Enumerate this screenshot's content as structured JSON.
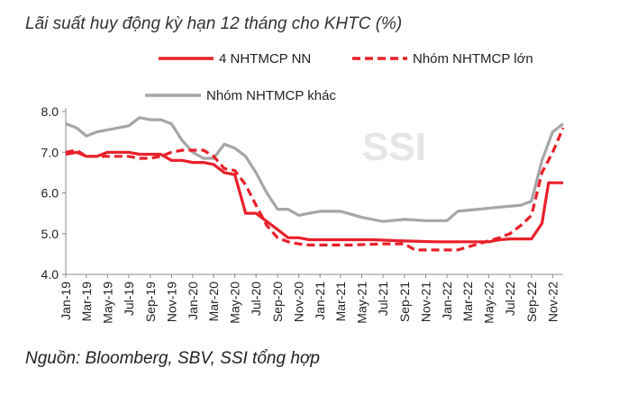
{
  "title": "Lãi suất huy động kỳ hạn 12 tháng cho KHTC (%)",
  "source": "Nguồn:  Bloomberg, SBV, SSI tổng hợp",
  "watermark": "SSI",
  "chart_data": {
    "type": "line",
    "ylim": [
      4.0,
      8.0
    ],
    "yticks": [
      "4.0",
      "5.0",
      "6.0",
      "7.0",
      "8.0"
    ],
    "xlim": [
      "2019-01",
      "2022-12"
    ],
    "xticks": [
      "Jan-19",
      "Mar-19",
      "May-19",
      "Jul-19",
      "Sep-19",
      "Nov-19",
      "Jan-20",
      "Mar-20",
      "May-20",
      "Jul-20",
      "Sep-20",
      "Nov-20",
      "Jan-21",
      "Mar-21",
      "May-21",
      "Jul-21",
      "Sep-21",
      "Nov-21",
      "Jan-22",
      "Mar-22",
      "May-22",
      "Jul-22",
      "Sep-22",
      "Nov-22"
    ],
    "legend_position": "top",
    "series": [
      {
        "name": "4 NHTMCP NN",
        "color": "#e8202a",
        "dash": "solid",
        "points": [
          [
            "2019-01-01",
            6.95
          ],
          [
            "2019-02-01",
            7.0
          ],
          [
            "2019-03-01",
            6.9
          ],
          [
            "2019-04-01",
            6.9
          ],
          [
            "2019-05-01",
            7.0
          ],
          [
            "2019-06-01",
            7.0
          ],
          [
            "2019-07-01",
            7.0
          ],
          [
            "2019-08-01",
            6.95
          ],
          [
            "2019-09-01",
            6.95
          ],
          [
            "2019-10-01",
            6.95
          ],
          [
            "2019-11-01",
            6.8
          ],
          [
            "2019-12-01",
            6.8
          ],
          [
            "2020-01-01",
            6.75
          ],
          [
            "2020-02-01",
            6.75
          ],
          [
            "2020-03-01",
            6.7
          ],
          [
            "2020-04-01",
            6.5
          ],
          [
            "2020-05-01",
            6.45
          ],
          [
            "2020-06-01",
            5.5
          ],
          [
            "2020-07-01",
            5.5
          ],
          [
            "2020-08-01",
            5.3
          ],
          [
            "2020-09-01",
            5.1
          ],
          [
            "2020-10-01",
            4.9
          ],
          [
            "2020-11-01",
            4.9
          ],
          [
            "2020-12-01",
            4.85
          ],
          [
            "2021-01-01",
            4.85
          ],
          [
            "2021-03-01",
            4.85
          ],
          [
            "2021-06-01",
            4.85
          ],
          [
            "2021-09-01",
            4.82
          ],
          [
            "2021-12-01",
            4.8
          ],
          [
            "2022-03-01",
            4.8
          ],
          [
            "2022-05-01",
            4.8
          ],
          [
            "2022-06-01",
            4.85
          ],
          [
            "2022-07-01",
            4.87
          ],
          [
            "2022-08-01",
            4.87
          ],
          [
            "2022-09-01",
            4.87
          ],
          [
            "2022-10-01",
            5.25
          ],
          [
            "2022-10-20",
            6.25
          ],
          [
            "2022-12-01",
            6.25
          ]
        ]
      },
      {
        "name": "Nhóm NHTMCP lớn",
        "color": "#e8202a",
        "dash": "dashed",
        "points": [
          [
            "2019-01-01",
            7.0
          ],
          [
            "2019-02-01",
            7.05
          ],
          [
            "2019-03-01",
            6.9
          ],
          [
            "2019-04-01",
            6.9
          ],
          [
            "2019-05-01",
            6.9
          ],
          [
            "2019-06-01",
            6.9
          ],
          [
            "2019-07-01",
            6.9
          ],
          [
            "2019-08-01",
            6.85
          ],
          [
            "2019-09-01",
            6.85
          ],
          [
            "2019-10-01",
            6.9
          ],
          [
            "2019-11-01",
            7.0
          ],
          [
            "2019-12-01",
            7.05
          ],
          [
            "2020-01-01",
            7.05
          ],
          [
            "2020-02-01",
            7.05
          ],
          [
            "2020-03-01",
            6.9
          ],
          [
            "2020-04-01",
            6.6
          ],
          [
            "2020-05-01",
            6.55
          ],
          [
            "2020-06-01",
            6.2
          ],
          [
            "2020-07-01",
            5.7
          ],
          [
            "2020-08-01",
            5.2
          ],
          [
            "2020-09-01",
            4.9
          ],
          [
            "2020-10-01",
            4.8
          ],
          [
            "2020-11-01",
            4.75
          ],
          [
            "2020-12-01",
            4.72
          ],
          [
            "2021-01-01",
            4.72
          ],
          [
            "2021-04-01",
            4.72
          ],
          [
            "2021-07-01",
            4.75
          ],
          [
            "2021-09-01",
            4.75
          ],
          [
            "2021-10-01",
            4.6
          ],
          [
            "2021-12-01",
            4.6
          ],
          [
            "2022-02-01",
            4.6
          ],
          [
            "2022-04-01",
            4.75
          ],
          [
            "2022-06-01",
            4.9
          ],
          [
            "2022-07-01",
            5.0
          ],
          [
            "2022-08-01",
            5.2
          ],
          [
            "2022-09-01",
            5.45
          ],
          [
            "2022-10-01",
            6.5
          ],
          [
            "2022-11-01",
            7.0
          ],
          [
            "2022-12-01",
            7.6
          ]
        ]
      },
      {
        "name": "Nhóm NHTMCP khác",
        "color": "#a6a6a6",
        "dash": "solid",
        "points": [
          [
            "2019-01-01",
            7.7
          ],
          [
            "2019-02-01",
            7.6
          ],
          [
            "2019-03-01",
            7.4
          ],
          [
            "2019-04-01",
            7.5
          ],
          [
            "2019-05-01",
            7.55
          ],
          [
            "2019-06-01",
            7.6
          ],
          [
            "2019-07-01",
            7.65
          ],
          [
            "2019-08-01",
            7.85
          ],
          [
            "2019-09-01",
            7.8
          ],
          [
            "2019-10-01",
            7.8
          ],
          [
            "2019-11-01",
            7.7
          ],
          [
            "2019-12-01",
            7.3
          ],
          [
            "2020-01-01",
            7.0
          ],
          [
            "2020-02-01",
            6.85
          ],
          [
            "2020-03-01",
            6.85
          ],
          [
            "2020-04-01",
            7.2
          ],
          [
            "2020-05-01",
            7.1
          ],
          [
            "2020-06-01",
            6.9
          ],
          [
            "2020-07-01",
            6.5
          ],
          [
            "2020-08-01",
            6.0
          ],
          [
            "2020-09-01",
            5.6
          ],
          [
            "2020-10-01",
            5.6
          ],
          [
            "2020-11-01",
            5.45
          ],
          [
            "2020-12-01",
            5.5
          ],
          [
            "2021-01-01",
            5.55
          ],
          [
            "2021-03-01",
            5.55
          ],
          [
            "2021-05-01",
            5.4
          ],
          [
            "2021-07-01",
            5.3
          ],
          [
            "2021-09-01",
            5.35
          ],
          [
            "2021-11-01",
            5.32
          ],
          [
            "2022-01-01",
            5.32
          ],
          [
            "2022-02-01",
            5.55
          ],
          [
            "2022-04-01",
            5.6
          ],
          [
            "2022-06-01",
            5.65
          ],
          [
            "2022-08-01",
            5.7
          ],
          [
            "2022-09-01",
            5.8
          ],
          [
            "2022-10-01",
            6.8
          ],
          [
            "2022-11-01",
            7.5
          ],
          [
            "2022-12-01",
            7.7
          ]
        ]
      }
    ]
  }
}
